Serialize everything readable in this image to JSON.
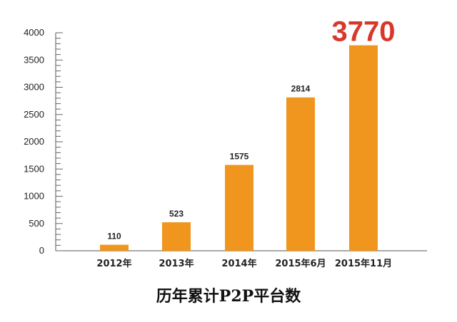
{
  "chart_data": {
    "type": "bar",
    "title": "历年累计P2P平台数",
    "categories": [
      "2012年",
      "2013年",
      "2014年",
      "2015年6月",
      "2015年11月"
    ],
    "values": [
      110,
      523,
      1575,
      2814,
      3770
    ],
    "ylim": [
      0,
      4000
    ],
    "yticks": [
      0,
      500,
      1000,
      1500,
      2000,
      2500,
      3000,
      3500,
      4000
    ],
    "data_labels": [
      "110",
      "523",
      "1575",
      "2814",
      "3770"
    ],
    "highlight_index": 4,
    "grid": false,
    "bar_color": "#f0961e",
    "highlight_label_color": "#d9372a"
  }
}
